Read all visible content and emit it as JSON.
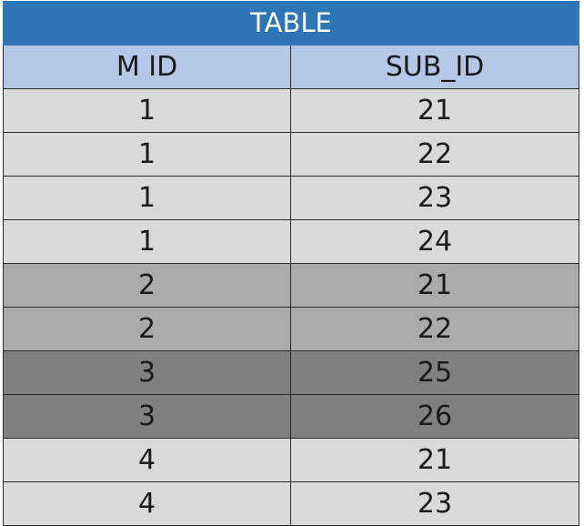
{
  "title": "TABLE",
  "columns": [
    "M ID",
    "SUB_ID"
  ],
  "rows": [
    {
      "m_id": "1",
      "sub_id": "21",
      "bg": "#d9d9d9"
    },
    {
      "m_id": "1",
      "sub_id": "22",
      "bg": "#d9d9d9"
    },
    {
      "m_id": "1",
      "sub_id": "23",
      "bg": "#d9d9d9"
    },
    {
      "m_id": "1",
      "sub_id": "24",
      "bg": "#d9d9d9"
    },
    {
      "m_id": "2",
      "sub_id": "21",
      "bg": "#aaaaaa"
    },
    {
      "m_id": "2",
      "sub_id": "22",
      "bg": "#aaaaaa"
    },
    {
      "m_id": "3",
      "sub_id": "25",
      "bg": "#808080"
    },
    {
      "m_id": "3",
      "sub_id": "26",
      "bg": "#808080"
    },
    {
      "m_id": "4",
      "sub_id": "21",
      "bg": "#d9d9d9"
    },
    {
      "m_id": "4",
      "sub_id": "23",
      "bg": "#d9d9d9"
    }
  ],
  "colors": {
    "title_bg": "#2e75b6",
    "header_bg": "#b4c7e7"
  }
}
